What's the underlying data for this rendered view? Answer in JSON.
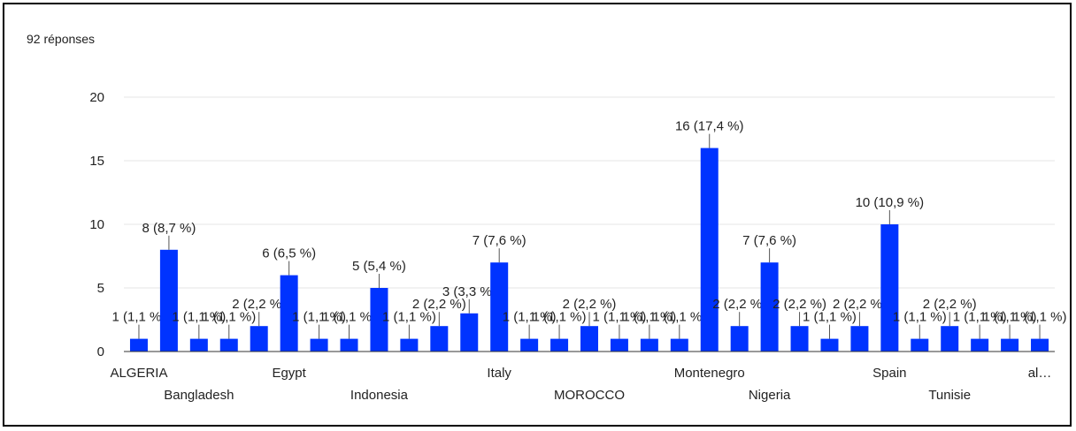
{
  "header": {
    "responses_label": "92 réponses"
  },
  "colors": {
    "bar": "#0033ff",
    "grid": "#e6e6e6",
    "axis": "#333333",
    "text": "#222222",
    "leader": "#555555"
  },
  "chart_data": {
    "type": "bar",
    "title": "",
    "xlabel": "",
    "ylabel": "",
    "ylim": [
      0,
      20
    ],
    "yticks": [
      0,
      5,
      10,
      15,
      20
    ],
    "grid": true,
    "legend": "none",
    "values": [
      1,
      8,
      1,
      1,
      2,
      6,
      1,
      1,
      5,
      1,
      2,
      3,
      7,
      1,
      1,
      2,
      1,
      1,
      1,
      16,
      2,
      7,
      2,
      1,
      2,
      10,
      1,
      2,
      1,
      1,
      1
    ],
    "data_labels": [
      "1 (1,1 %)",
      "8 (8,7 %)",
      "1 (1,1 %)",
      "1 (1,1 %)",
      "2 (2,2 %)",
      "6 (6,5 %)",
      "1 (1,1 %)",
      "1 (1,1 %)",
      "5 (5,4 %)",
      "1 (1,1 %)",
      "2 (2,2 %)",
      "3 (3,3 %)",
      "7 (7,6 %)",
      "1 (1,1 %)",
      "1 (1,1 %)",
      "2 (2,2 %)",
      "1 (1,1 %)",
      "1 (1,1 %)",
      "1 (1,1 %)",
      "16 (17,4 %)",
      "2 (2,2 %)",
      "7 (7,6 %)",
      "2 (2,2 %)",
      "1 (1,1 %)",
      "2 (2,2 %)",
      "10 (10,9 %)",
      "1 (1,1 %)",
      "2 (2,2 %)",
      "1 (1,1 %)",
      "1 (1,1 %)",
      "1 (1,1 %)"
    ],
    "categories": [
      "ALGERIA",
      "",
      "Bangladesh",
      "",
      "",
      "Egypt",
      "",
      "",
      "Indonesia",
      "",
      "",
      "",
      "Italy",
      "",
      "",
      "MOROCCO",
      "",
      "",
      "",
      "Montenegro",
      "",
      "Nigeria",
      "",
      "",
      "",
      "Spain",
      "",
      "Tunisie",
      "",
      "",
      "al…"
    ]
  }
}
